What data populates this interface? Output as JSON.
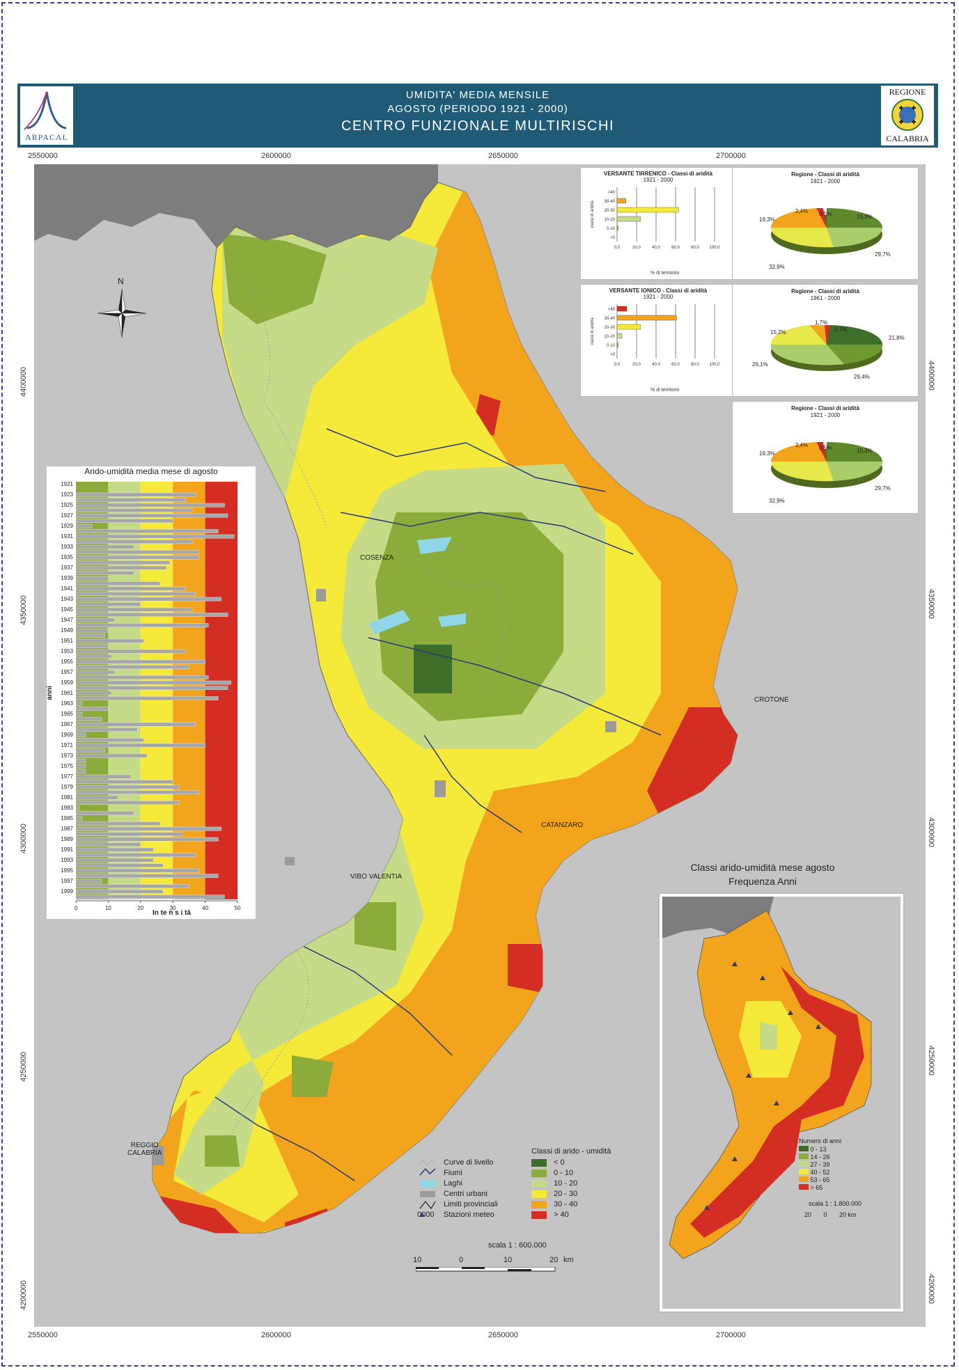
{
  "header": {
    "line1": "UMIDITA' MEDIA MENSILE",
    "line2": "AGOSTO (PERIODO 1921 - 2000)",
    "line3": "CENTRO FUNZIONALE MULTIRISCHI",
    "logo_left": "ARPACAL",
    "logo_right_top": "REGIONE",
    "logo_right_bottom": "CALABRIA"
  },
  "coordinates": {
    "top_x": [
      "2550000",
      "2600000",
      "2650000",
      "2700000"
    ],
    "bottom_x": [
      "2550000",
      "2600000",
      "2650000",
      "2700000"
    ],
    "left_y": [
      "4400000",
      "4350000",
      "4300000",
      "4250000",
      "4200000"
    ],
    "right_y": [
      "4400000",
      "4350000",
      "4300000",
      "4250000",
      "4200000"
    ]
  },
  "places": {
    "cosenza": "COSENZA",
    "crotone": "CROTONE",
    "catanzaro": "CATANZARO",
    "vibo": "VIBO VALENTIA",
    "reggio": "REGGIO\nCALABRIA"
  },
  "compass": {
    "north": "N"
  },
  "scale": {
    "label": "scala 1 : 600.000",
    "ticks": [
      "10",
      "0",
      "10",
      "20",
      "km"
    ]
  },
  "legend": {
    "left_items": [
      "Curve di livello",
      "Fiumi",
      "Laghi",
      "Centri urbani",
      "Limiti provinciali",
      "Stazioni meteo"
    ],
    "station_symbol": "0000",
    "classes_title": "Classi di arido - umidità",
    "classes": [
      {
        "label": "< 0",
        "color": "#3d6e2a"
      },
      {
        "label": "0 - 10",
        "color": "#8bab3a"
      },
      {
        "label": "10 - 20",
        "color": "#c5db88"
      },
      {
        "label": "20 - 30",
        "color": "#f5e93a"
      },
      {
        "label": "30 - 40",
        "color": "#f2a51c"
      },
      {
        "label": "> 40",
        "color": "#d42d24"
      }
    ]
  },
  "mini_charts": [
    {
      "title": "VERSANTE TIRRENICO - Classi di aridità",
      "period": "1921 - 2000",
      "ylabel": "classi di aridità",
      "xlabel": "% di territorio",
      "categories": [
        ">40",
        "30-40",
        "20-30",
        "10-20",
        "0-10",
        "<0"
      ],
      "values": [
        0,
        9,
        63,
        24,
        1,
        0
      ],
      "colors": [
        "#d42d24",
        "#f2a51c",
        "#f5e93a",
        "#c5db88",
        "#8bab3a",
        "#3d6e2a"
      ],
      "xticks": [
        "0,0",
        "20,0",
        "40,0",
        "60,0",
        "80,0",
        "100,0"
      ]
    },
    {
      "title": "VERSANTE IONICO - Classi di aridità",
      "period": "1921 - 2000",
      "ylabel": "classi di aridità",
      "xlabel": "% di territorio",
      "categories": [
        ">40",
        "30-40",
        "20-30",
        "10-20",
        "0-10",
        "<0"
      ],
      "values": [
        10,
        61,
        24,
        5,
        1,
        0
      ],
      "colors": [
        "#d42d24",
        "#f2a51c",
        "#f5e93a",
        "#c5db88",
        "#8bab3a",
        "#3d6e2a"
      ],
      "xticks": [
        "0,0",
        "20,0",
        "40,0",
        "60,0",
        "80,0",
        "100,0"
      ]
    }
  ],
  "pies": [
    {
      "title": "Regione - Classi di aridità",
      "period": "1921 - 2000",
      "labels": [
        "2,4%",
        "0,5%",
        "15,3%",
        "29,7%",
        "32,9%",
        "19,3%"
      ]
    },
    {
      "title": "Regione - Classi di aridità",
      "period": "1961 - 2000",
      "labels": [
        "1,7%",
        "5,7%",
        "21,8%",
        "29,4%",
        "26,1%",
        "15,2%"
      ]
    },
    {
      "title": "Regione - Classi di aridità",
      "period": "1921 - 2000",
      "labels": [
        "2,4%",
        "0,5%",
        "15,3%",
        "29,7%",
        "32,9%",
        "19,3%"
      ]
    }
  ],
  "chart_data": {
    "type": "bar",
    "title": "Arido-umidità media mese di agosto",
    "xlabel": "In te n s i tà",
    "ylabel": "anni",
    "xlim": [
      0,
      50
    ],
    "xticks": [
      "0",
      "10",
      "20",
      "30",
      "40",
      "50"
    ],
    "band_colors": [
      "#8bab3a",
      "#c5db88",
      "#f5e93a",
      "#f2a51c",
      "#d42d24"
    ],
    "year_labels": [
      "1921",
      "1923",
      "1925",
      "1927",
      "1929",
      "1931",
      "1933",
      "1935",
      "1937",
      "1939",
      "1941",
      "1943",
      "1945",
      "1947",
      "1949",
      "1951",
      "1953",
      "1955",
      "1957",
      "1959",
      "1961",
      "1963",
      "1965",
      "1967",
      "1969",
      "1971",
      "1973",
      "1975",
      "1977",
      "1979",
      "1981",
      "1983",
      "1985",
      "1987",
      "1989",
      "1991",
      "1993",
      "1995",
      "1997",
      "1999"
    ],
    "years": [
      1921,
      1922,
      1923,
      1924,
      1925,
      1926,
      1927,
      1928,
      1929,
      1930,
      1931,
      1932,
      1933,
      1934,
      1935,
      1936,
      1937,
      1938,
      1939,
      1940,
      1941,
      1942,
      1943,
      1944,
      1945,
      1946,
      1947,
      1948,
      1949,
      1950,
      1951,
      1952,
      1953,
      1954,
      1955,
      1956,
      1957,
      1958,
      1959,
      1960,
      1961,
      1962,
      1963,
      1964,
      1965,
      1966,
      1967,
      1968,
      1969,
      1970,
      1971,
      1972,
      1973,
      1974,
      1975,
      1976,
      1977,
      1978,
      1979,
      1980,
      1981,
      1982,
      1983,
      1984,
      1985,
      1986,
      1987,
      1988,
      1989,
      1990,
      1991,
      1992,
      1993,
      1994,
      1995,
      1996,
      1997,
      1998,
      1999,
      2000
    ],
    "values": [
      0,
      0,
      37,
      34,
      46,
      36,
      47,
      30,
      5,
      44,
      49,
      36,
      18,
      38,
      38,
      29,
      28,
      18,
      10,
      26,
      34,
      37,
      45,
      20,
      36,
      47,
      12,
      41,
      10,
      9,
      21,
      10,
      34,
      11,
      40,
      35,
      12,
      41,
      48,
      47,
      11,
      44,
      2,
      10,
      2,
      8,
      37,
      19,
      3,
      21,
      40,
      9,
      22,
      3,
      3,
      3,
      17,
      30,
      32,
      38,
      13,
      32,
      1,
      18,
      2,
      26,
      45,
      33,
      44,
      20,
      24,
      37,
      24,
      27,
      38,
      44,
      8,
      35,
      27,
      46
    ]
  }
}
